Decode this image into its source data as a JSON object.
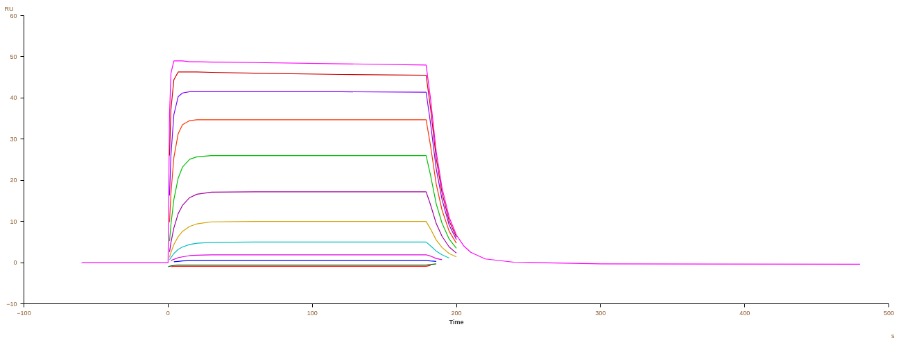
{
  "chart_data": {
    "type": "line",
    "ylabel": "RU",
    "xlabel": "Time",
    "annotations": [
      "s"
    ],
    "xlim": [
      -100,
      500
    ],
    "xticks": [
      -100,
      0,
      100,
      200,
      300,
      400,
      500
    ],
    "ylim": [
      -10,
      60
    ],
    "yticks": [
      -10,
      0,
      10,
      20,
      30,
      40,
      50,
      60
    ],
    "grid": false,
    "marker": "none",
    "line_style": "solid",
    "series": [
      {
        "color": "#ff00ff",
        "x": [
          -60,
          -1,
          0,
          1,
          2,
          4,
          7,
          10,
          15,
          20,
          30,
          60,
          120,
          179,
          182,
          186,
          190,
          195,
          200,
          205,
          210,
          220,
          240,
          300,
          480
        ],
        "values": [
          0,
          0,
          0,
          36,
          46,
          49,
          49,
          49,
          48.8,
          48.8,
          48.7,
          48.6,
          48.3,
          48.0,
          40.0,
          27.0,
          18.2,
          11.0,
          6.7,
          4.1,
          2.5,
          0.9,
          0.1,
          -0.3,
          -0.4
        ]
      },
      {
        "color": "#cc0000",
        "x": [
          1,
          2,
          4,
          7,
          10,
          15,
          20,
          30,
          60,
          120,
          179,
          182,
          186,
          190,
          195,
          200
        ],
        "values": [
          26.0,
          37.3,
          44.4,
          46.3,
          46.3,
          46.3,
          46.3,
          46.2,
          46,
          45.7,
          45.5,
          37.7,
          25.3,
          17.0,
          10.1,
          6.2
        ]
      },
      {
        "color": "#8000ff",
        "x": [
          1,
          2,
          4,
          7,
          10,
          15,
          20,
          30,
          60,
          120,
          179,
          182,
          186,
          190,
          195,
          200
        ],
        "values": [
          16.3,
          26.2,
          35.9,
          40.3,
          41.2,
          41.5,
          41.5,
          41.5,
          41.5,
          41.5,
          41.4,
          34.0,
          22.8,
          15.4,
          9.1,
          5.6
        ]
      },
      {
        "color": "#ff3300",
        "x": [
          1,
          2,
          4,
          7,
          10,
          15,
          20,
          30,
          60,
          120,
          179,
          182,
          186,
          190,
          195,
          200
        ],
        "values": [
          9.8,
          16.9,
          25.5,
          31.3,
          33.5,
          34.5,
          34.7,
          34.7,
          34.7,
          34.7,
          34.7,
          28.5,
          19.1,
          12.8,
          7.6,
          4.7
        ]
      },
      {
        "color": "#00c000",
        "x": [
          1,
          2,
          4,
          7,
          10,
          15,
          20,
          30,
          60,
          120,
          179,
          182,
          186,
          190,
          195,
          200
        ],
        "values": [
          5.2,
          9.3,
          15.3,
          20.5,
          23.2,
          25.1,
          25.7,
          26,
          26,
          26,
          26,
          21.3,
          14.3,
          9.6,
          5.7,
          3.5
        ]
      },
      {
        "color": "#a000a0",
        "x": [
          1,
          2,
          4,
          7,
          10,
          15,
          20,
          30,
          60,
          120,
          179,
          182,
          186,
          190,
          195,
          200
        ],
        "values": [
          2.6,
          4.9,
          8.4,
          11.9,
          13.9,
          15.8,
          16.6,
          17.1,
          17.2,
          17.2,
          17.2,
          14.1,
          9.5,
          6.4,
          3.8,
          2.3
        ]
      },
      {
        "color": "#d4a000",
        "x": [
          1,
          2,
          4,
          7,
          10,
          15,
          20,
          30,
          60,
          120,
          179,
          182,
          186,
          190,
          195,
          200
        ],
        "values": [
          1.3,
          2.5,
          4.4,
          6.3,
          7.6,
          8.8,
          9.4,
          9.9,
          10,
          10,
          10,
          8.2,
          5.5,
          3.7,
          2.2,
          1.4
        ]
      },
      {
        "color": "#00c0c0",
        "x": [
          1,
          2,
          4,
          7,
          10,
          15,
          20,
          30,
          60,
          120,
          179,
          182,
          186,
          190,
          195
        ],
        "values": [
          0.7,
          1.2,
          2.2,
          3.2,
          3.8,
          4.4,
          4.7,
          4.9,
          5,
          5,
          5,
          4.1,
          2.8,
          1.9,
          1.1
        ]
      },
      {
        "color": "#e000e0",
        "x": [
          2,
          4,
          7,
          10,
          15,
          20,
          30,
          60,
          120,
          179,
          182,
          186,
          190
        ],
        "values": [
          0.5,
          0.8,
          1.2,
          1.4,
          1.7,
          1.8,
          1.9,
          1.9,
          1.9,
          1.9,
          1.6,
          1.0,
          0.7
        ]
      },
      {
        "color": "#0000ff",
        "x": [
          4,
          7,
          10,
          15,
          20,
          30,
          60,
          120,
          179,
          182,
          186
        ],
        "values": [
          0.2,
          0.3,
          0.4,
          0.5,
          0.5,
          0.5,
          0.5,
          0.5,
          0.5,
          0.4,
          0.3
        ]
      },
      {
        "color": "#006000",
        "x": [
          0,
          1,
          2,
          4,
          7,
          10,
          15,
          20,
          30,
          60,
          120,
          179,
          186
        ],
        "values": [
          -1.0,
          -0.9,
          -0.8,
          -0.7,
          -0.6,
          -0.6,
          -0.6,
          -0.6,
          -0.6,
          -0.6,
          -0.6,
          -0.6,
          -0.3
        ]
      },
      {
        "color": "#ff0000",
        "x": [
          2,
          4,
          7,
          10,
          15,
          20,
          30,
          60,
          120,
          179,
          182
        ],
        "values": [
          -1.0,
          -0.9,
          -0.9,
          -0.9,
          -0.9,
          -0.9,
          -0.9,
          -0.9,
          -0.9,
          -0.9,
          -0.7
        ]
      }
    ]
  }
}
